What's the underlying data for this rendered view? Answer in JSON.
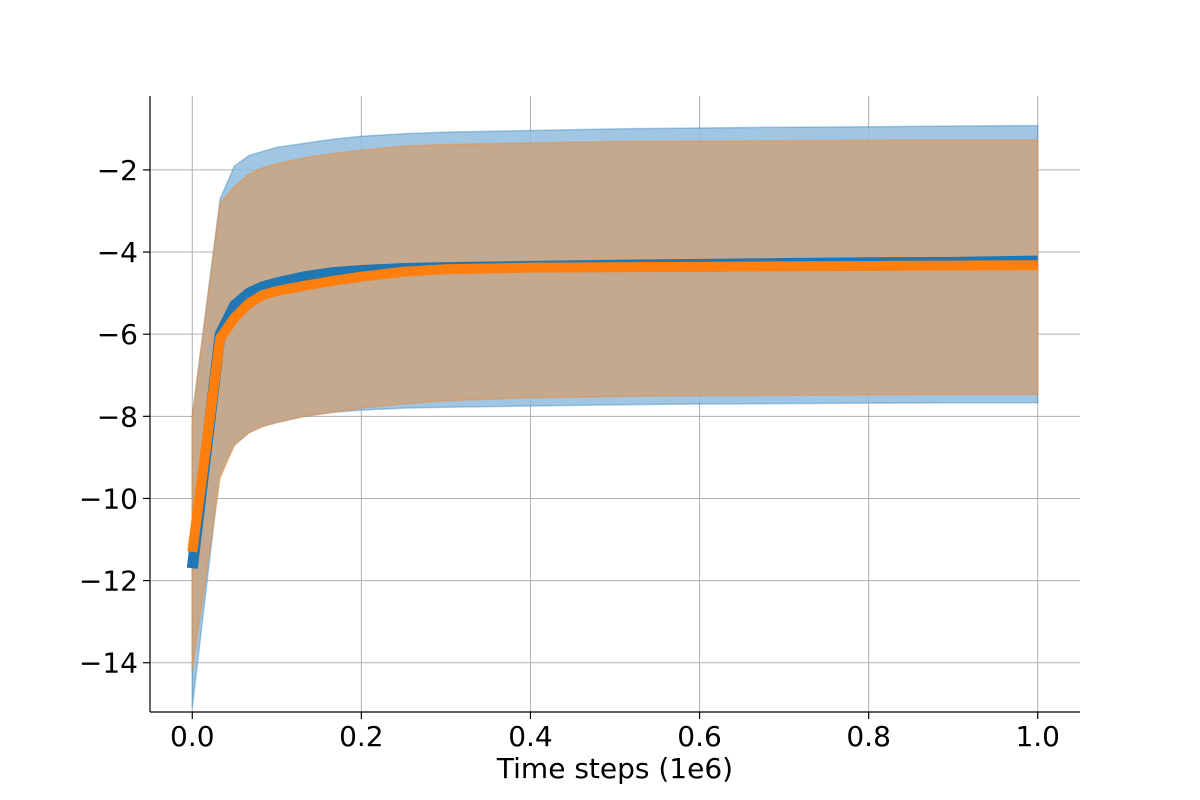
{
  "chart_data": {
    "type": "line",
    "xlabel": "Time steps (1e6)",
    "ylabel": "",
    "title": "",
    "xlim": [
      -0.05,
      1.05
    ],
    "ylim": [
      -15.2,
      -0.2
    ],
    "xticks": [
      0.0,
      0.2,
      0.4,
      0.6,
      0.8,
      1.0
    ],
    "xtick_labels": [
      "0.0",
      "0.2",
      "0.4",
      "0.6",
      "0.8",
      "1.0"
    ],
    "yticks": [
      -14,
      -12,
      -10,
      -8,
      -6,
      -4,
      -2
    ],
    "ytick_labels": [
      "−14",
      "−12",
      "−10",
      "−8",
      "−6",
      "−4",
      "−2"
    ],
    "grid": true,
    "legend": "none",
    "series": [
      {
        "color": "#1f77b4",
        "band_color": "#8fbcdf",
        "x": [
          0.0,
          0.033,
          0.05,
          0.067,
          0.083,
          0.1,
          0.133,
          0.167,
          0.2,
          0.25,
          0.3,
          0.4,
          0.5,
          0.6,
          0.7,
          0.8,
          0.9,
          1.0
        ],
        "mean": [
          -11.7,
          -6.0,
          -5.3,
          -5.0,
          -4.85,
          -4.75,
          -4.6,
          -4.5,
          -4.45,
          -4.4,
          -4.38,
          -4.35,
          -4.32,
          -4.3,
          -4.28,
          -4.26,
          -4.25,
          -4.22
        ],
        "upper": [
          -8.0,
          -2.7,
          -1.9,
          -1.65,
          -1.55,
          -1.45,
          -1.35,
          -1.25,
          -1.18,
          -1.12,
          -1.08,
          -1.04,
          -1.0,
          -0.98,
          -0.96,
          -0.95,
          -0.93,
          -0.92
        ],
        "lower": [
          -15.1,
          -9.3,
          -8.7,
          -8.4,
          -8.25,
          -8.15,
          -8.0,
          -7.9,
          -7.85,
          -7.8,
          -7.78,
          -7.75,
          -7.72,
          -7.7,
          -7.69,
          -7.68,
          -7.67,
          -7.67
        ]
      },
      {
        "color": "#ff7f0e",
        "band_color": "#c6a88a",
        "x": [
          0.0,
          0.033,
          0.05,
          0.067,
          0.083,
          0.1,
          0.133,
          0.167,
          0.2,
          0.25,
          0.3,
          0.4,
          0.5,
          0.6,
          0.7,
          0.8,
          0.9,
          1.0
        ],
        "mean": [
          -11.3,
          -6.1,
          -5.6,
          -5.25,
          -5.05,
          -4.95,
          -4.82,
          -4.7,
          -4.6,
          -4.48,
          -4.42,
          -4.38,
          -4.37,
          -4.36,
          -4.35,
          -4.34,
          -4.33,
          -4.32
        ],
        "upper": [
          -8.0,
          -2.8,
          -2.4,
          -2.1,
          -1.95,
          -1.85,
          -1.7,
          -1.6,
          -1.52,
          -1.42,
          -1.38,
          -1.34,
          -1.31,
          -1.3,
          -1.29,
          -1.28,
          -1.27,
          -1.27
        ],
        "lower": [
          -14.2,
          -9.5,
          -8.7,
          -8.4,
          -8.25,
          -8.15,
          -8.0,
          -7.9,
          -7.8,
          -7.7,
          -7.62,
          -7.55,
          -7.52,
          -7.5,
          -7.49,
          -7.48,
          -7.47,
          -7.47
        ]
      }
    ]
  }
}
